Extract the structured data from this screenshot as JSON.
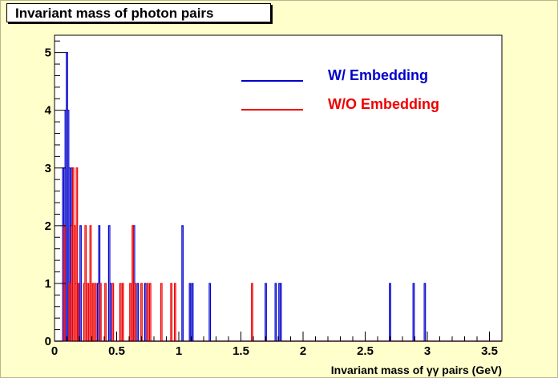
{
  "chart_data": {
    "type": "histogram",
    "title": "Invariant mass of photon pairs",
    "xlabel": "Invariant mass of γγ pairs  (GeV)",
    "ylabel": "",
    "xlim": [
      0,
      3.6
    ],
    "ylim": [
      0,
      5.3
    ],
    "xticks": [
      "0",
      "0.5",
      "1",
      "1.5",
      "2",
      "2.5",
      "3",
      "3.5"
    ],
    "yticks": [
      "0",
      "1",
      "2",
      "3",
      "4",
      "5"
    ],
    "bin_width": 0.01,
    "grid": false,
    "legend_position": "top-right",
    "series": [
      {
        "name": "W/ Embedding",
        "color": "#0000cc",
        "bins": [
          {
            "x": 0.07,
            "y": 3
          },
          {
            "x": 0.08,
            "y": 2
          },
          {
            "x": 0.09,
            "y": 4
          },
          {
            "x": 0.1,
            "y": 5
          },
          {
            "x": 0.11,
            "y": 4
          },
          {
            "x": 0.12,
            "y": 3
          },
          {
            "x": 0.13,
            "y": 2
          },
          {
            "x": 0.14,
            "y": 3
          },
          {
            "x": 0.19,
            "y": 1
          },
          {
            "x": 0.21,
            "y": 2
          },
          {
            "x": 0.35,
            "y": 1
          },
          {
            "x": 0.36,
            "y": 2
          },
          {
            "x": 0.44,
            "y": 2
          },
          {
            "x": 0.45,
            "y": 1
          },
          {
            "x": 0.64,
            "y": 2
          },
          {
            "x": 0.67,
            "y": 1
          },
          {
            "x": 0.73,
            "y": 1
          },
          {
            "x": 1.03,
            "y": 2
          },
          {
            "x": 1.09,
            "y": 1
          },
          {
            "x": 1.11,
            "y": 1
          },
          {
            "x": 1.25,
            "y": 1
          },
          {
            "x": 1.7,
            "y": 1
          },
          {
            "x": 1.78,
            "y": 1
          },
          {
            "x": 1.81,
            "y": 1
          },
          {
            "x": 1.82,
            "y": 1
          },
          {
            "x": 2.7,
            "y": 1
          },
          {
            "x": 2.89,
            "y": 1
          },
          {
            "x": 2.98,
            "y": 1
          }
        ]
      },
      {
        "name": "W/O Embedding",
        "color": "#ee0000",
        "bins": [
          {
            "x": 0.08,
            "y": 2
          },
          {
            "x": 0.12,
            "y": 1
          },
          {
            "x": 0.14,
            "y": 2
          },
          {
            "x": 0.15,
            "y": 3
          },
          {
            "x": 0.16,
            "y": 2
          },
          {
            "x": 0.17,
            "y": 1
          },
          {
            "x": 0.18,
            "y": 3
          },
          {
            "x": 0.19,
            "y": 1
          },
          {
            "x": 0.24,
            "y": 1
          },
          {
            "x": 0.25,
            "y": 2
          },
          {
            "x": 0.27,
            "y": 1
          },
          {
            "x": 0.29,
            "y": 2
          },
          {
            "x": 0.31,
            "y": 1
          },
          {
            "x": 0.33,
            "y": 1
          },
          {
            "x": 0.37,
            "y": 1
          },
          {
            "x": 0.41,
            "y": 1
          },
          {
            "x": 0.47,
            "y": 1
          },
          {
            "x": 0.53,
            "y": 1
          },
          {
            "x": 0.55,
            "y": 1
          },
          {
            "x": 0.61,
            "y": 1
          },
          {
            "x": 0.63,
            "y": 2
          },
          {
            "x": 0.65,
            "y": 1
          },
          {
            "x": 0.7,
            "y": 1
          },
          {
            "x": 0.75,
            "y": 1
          },
          {
            "x": 0.77,
            "y": 1
          },
          {
            "x": 0.86,
            "y": 1
          },
          {
            "x": 0.94,
            "y": 1
          },
          {
            "x": 0.97,
            "y": 1
          },
          {
            "x": 1.59,
            "y": 1
          }
        ]
      }
    ]
  }
}
